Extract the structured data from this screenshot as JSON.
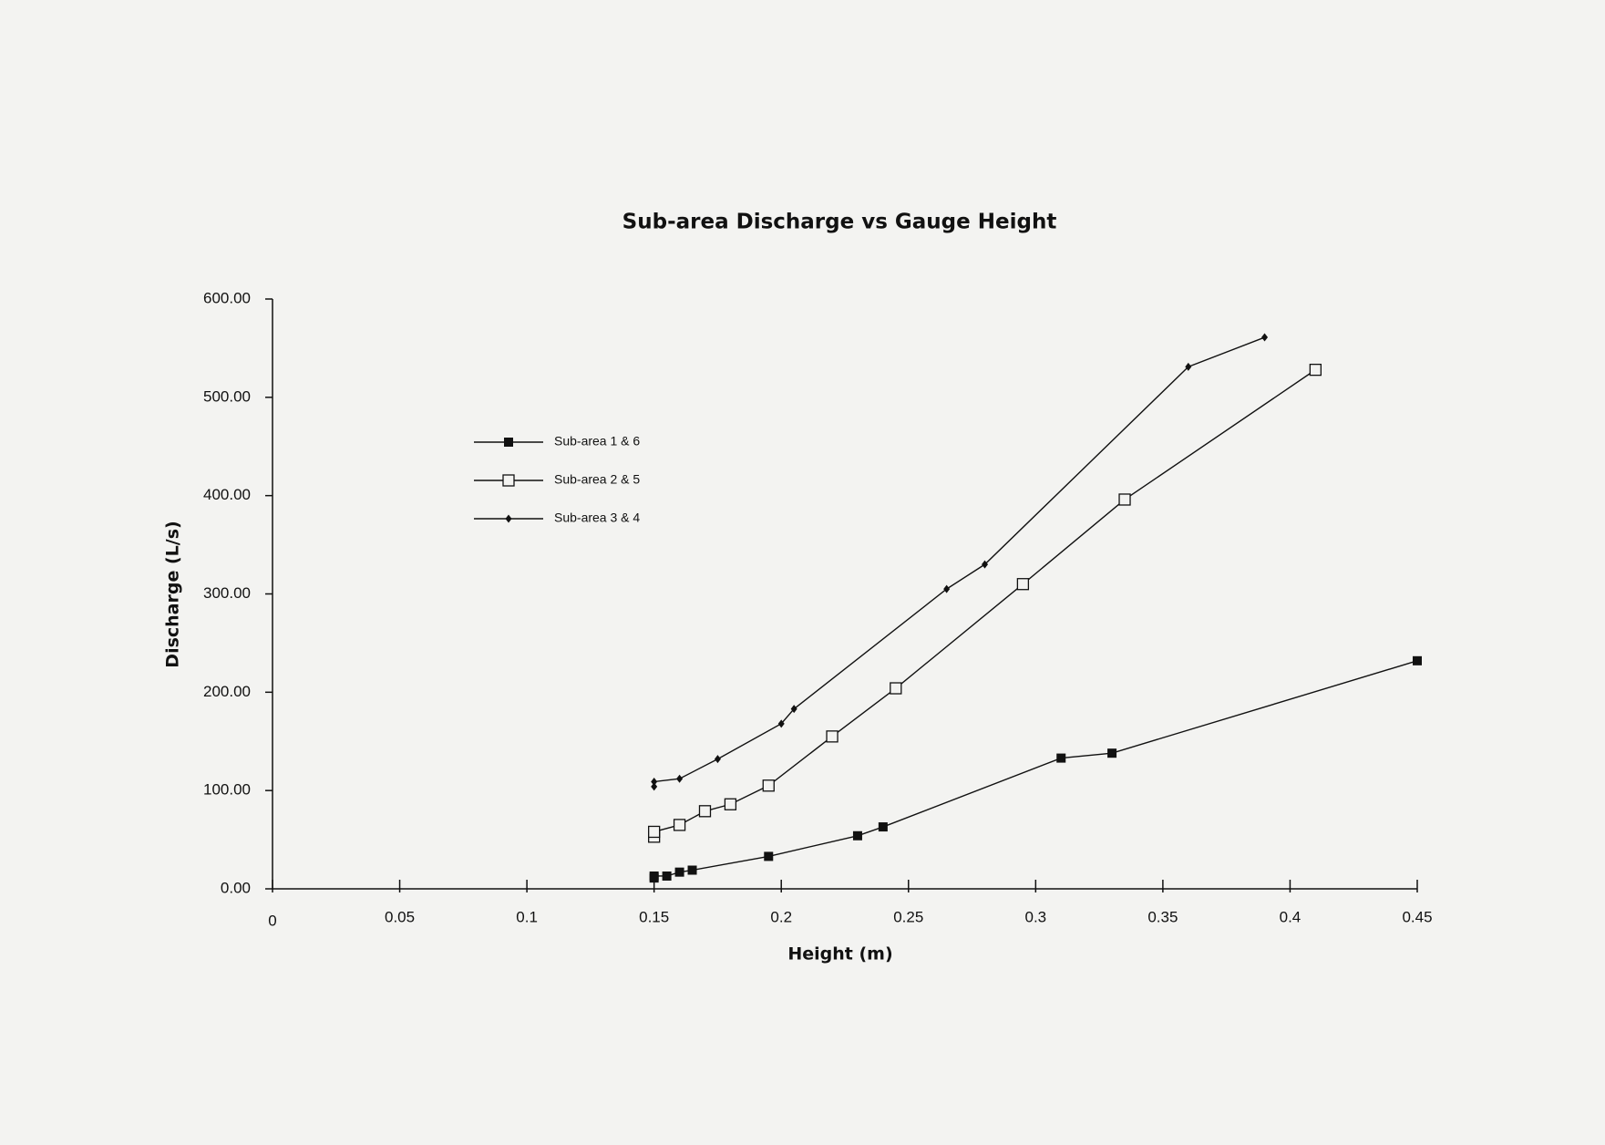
{
  "chart_data": {
    "type": "line",
    "title": "Sub-area Discharge vs Gauge Height",
    "x_label": "Height (m)",
    "y_label": "Discharge (L/s)",
    "xlim": [
      0,
      0.45
    ],
    "xticks": [
      0,
      0.05,
      0.1,
      0.15,
      0.2,
      0.25,
      0.3,
      0.35,
      0.4,
      0.45
    ],
    "ylim": [
      0,
      600
    ],
    "yticks": [
      {
        "value": 0,
        "label": "0.00"
      },
      {
        "value": 100,
        "label": "100.00"
      },
      {
        "value": 200,
        "label": "200.00"
      },
      {
        "value": 300,
        "label": "300.00"
      },
      {
        "value": 400,
        "label": "400.00"
      },
      {
        "value": 500,
        "label": "500.00"
      },
      {
        "value": 600,
        "label": "600.00"
      }
    ],
    "grid": false,
    "legend": "upper-left",
    "series": [
      {
        "name": "Sub-area 1 & 6",
        "color": "#111111",
        "marker": "square",
        "x": [
          0.15,
          0.15,
          0.155,
          0.16,
          0.165,
          0.195,
          0.23,
          0.24,
          0.31,
          0.33,
          0.45
        ],
        "values": [
          11,
          13,
          13,
          17,
          19,
          33,
          54,
          63,
          133,
          138,
          232
        ]
      },
      {
        "name": "Sub-area 2 & 5",
        "color": "#111111",
        "marker": "open-square",
        "x": [
          0.15,
          0.15,
          0.16,
          0.17,
          0.18,
          0.195,
          0.22,
          0.245,
          0.295,
          0.335,
          0.41
        ],
        "values": [
          53,
          58,
          65,
          79,
          86,
          105,
          155,
          204,
          310,
          396,
          528
        ]
      },
      {
        "name": "Sub-area 3 & 4",
        "color": "#111111",
        "marker": "diamond",
        "x": [
          0.15,
          0.15,
          0.16,
          0.175,
          0.2,
          0.205,
          0.265,
          0.28,
          0.36,
          0.39
        ],
        "values": [
          104,
          109,
          112,
          132,
          168,
          183,
          305,
          330,
          531,
          561
        ]
      }
    ]
  }
}
